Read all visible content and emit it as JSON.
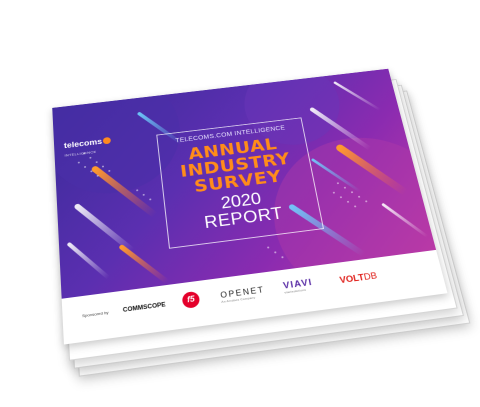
{
  "cover": {
    "brand": {
      "name": "telecoms",
      "sub": "INTELLIGENCE"
    },
    "kicker": "TELECOMS.COM INTELLIGENCE",
    "title_lines": [
      "ANNUAL",
      "INDUSTRY",
      "SURVEY"
    ],
    "year": "2020",
    "report_word": "REPORT"
  },
  "sponsors": {
    "label": "Sponsored by",
    "logos": {
      "commscope": "COMMSCOPE",
      "f5": "f5",
      "openet": "OPENET",
      "openet_tag": "An Amdocs Company",
      "viavi": "VIAVI",
      "viavi_tag": "viavisolutions",
      "voltdb_volt": "VOLT",
      "voltdb_db": "DB"
    }
  },
  "colors": {
    "accent_orange": "#ff8c1a",
    "gradient_start": "#3a2b9a",
    "gradient_end": "#c23aa5"
  }
}
